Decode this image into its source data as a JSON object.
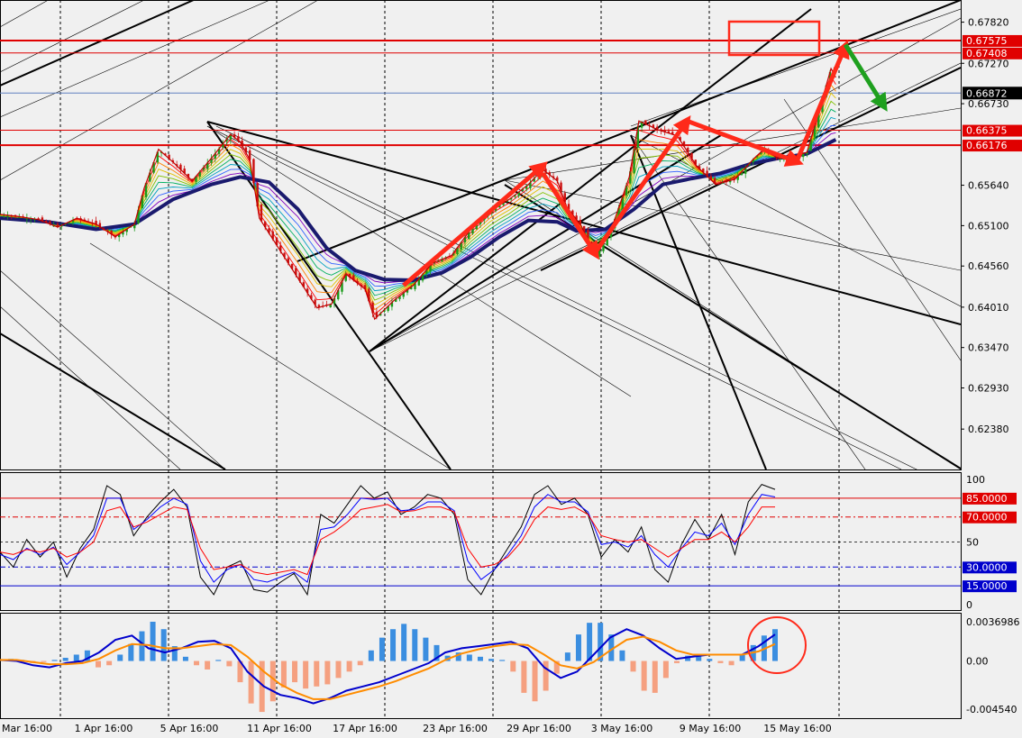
{
  "chart_data": [
    {
      "type": "line",
      "subtype": "candlestick",
      "pane": "price",
      "ylim": [
        0.6184,
        0.6802
      ],
      "y_ticks": [
        "0.67820",
        "0.67270",
        "0.66730",
        "0.65640",
        "0.65100",
        "0.64560",
        "0.64010",
        "0.63470",
        "0.62930",
        "0.62380"
      ],
      "horizontal_levels": [
        {
          "label": "0.67575",
          "value": 0.67575,
          "color": "#e00000"
        },
        {
          "label": "0.67408",
          "value": 0.67408,
          "color": "#e00000"
        },
        {
          "label": "0.66375",
          "value": 0.66375,
          "color": "#e00000"
        },
        {
          "label": "0.66176",
          "value": 0.66176,
          "color": "#e00000"
        }
      ],
      "current_price": {
        "label": "0.66872",
        "value": 0.66872
      },
      "x_ticks": [
        "Mar 16:00",
        "1 Apr 16:00",
        "5 Apr 16:00",
        "11 Apr 16:00",
        "17 Apr 16:00",
        "23 Apr 16:00",
        "29 Apr 16:00",
        "3 May 16:00",
        "9 May 16:00",
        "15 May 16:00"
      ],
      "close_path": [
        [
          0,
          0.6525
        ],
        [
          4,
          0.6522
        ],
        [
          8,
          0.6518
        ],
        [
          12,
          0.6508
        ],
        [
          16,
          0.652
        ],
        [
          20,
          0.6512
        ],
        [
          24,
          0.6495
        ],
        [
          28,
          0.6512
        ],
        [
          30,
          0.656
        ],
        [
          33,
          0.6612
        ],
        [
          36,
          0.6595
        ],
        [
          40,
          0.657
        ],
        [
          44,
          0.66
        ],
        [
          48,
          0.6632
        ],
        [
          50,
          0.6622
        ],
        [
          52,
          0.6598
        ],
        [
          54,
          0.652
        ],
        [
          58,
          0.648
        ],
        [
          62,
          0.644
        ],
        [
          66,
          0.64
        ],
        [
          69,
          0.6405
        ],
        [
          72,
          0.6445
        ],
        [
          76,
          0.6425
        ],
        [
          78,
          0.6385
        ],
        [
          82,
          0.641
        ],
        [
          86,
          0.643
        ],
        [
          90,
          0.646
        ],
        [
          94,
          0.647
        ],
        [
          98,
          0.6505
        ],
        [
          102,
          0.653
        ],
        [
          106,
          0.6545
        ],
        [
          110,
          0.6565
        ],
        [
          113,
          0.6585
        ],
        [
          116,
          0.657
        ],
        [
          118,
          0.6535
        ],
        [
          121,
          0.651
        ],
        [
          124,
          0.647
        ],
        [
          127,
          0.65
        ],
        [
          131,
          0.6575
        ],
        [
          133,
          0.665
        ],
        [
          137,
          0.6638
        ],
        [
          141,
          0.663
        ],
        [
          145,
          0.659
        ],
        [
          149,
          0.6565
        ],
        [
          153,
          0.6572
        ],
        [
          157,
          0.66
        ],
        [
          159,
          0.6612
        ],
        [
          162,
          0.66
        ],
        [
          165,
          0.6602
        ],
        [
          168,
          0.6608
        ],
        [
          171,
          0.6675
        ],
        [
          173,
          0.672
        ],
        [
          174,
          0.6708
        ]
      ],
      "ma_path": [
        [
          0,
          0.652
        ],
        [
          10,
          0.6515
        ],
        [
          20,
          0.6505
        ],
        [
          28,
          0.6512
        ],
        [
          36,
          0.6545
        ],
        [
          44,
          0.6565
        ],
        [
          50,
          0.6575
        ],
        [
          56,
          0.6568
        ],
        [
          62,
          0.6532
        ],
        [
          68,
          0.648
        ],
        [
          74,
          0.645
        ],
        [
          80,
          0.6438
        ],
        [
          86,
          0.6437
        ],
        [
          92,
          0.6447
        ],
        [
          98,
          0.6468
        ],
        [
          104,
          0.6495
        ],
        [
          110,
          0.6517
        ],
        [
          116,
          0.6515
        ],
        [
          120,
          0.6503
        ],
        [
          126,
          0.6505
        ],
        [
          132,
          0.6532
        ],
        [
          138,
          0.6565
        ],
        [
          144,
          0.6573
        ],
        [
          150,
          0.658
        ],
        [
          156,
          0.6592
        ],
        [
          162,
          0.66
        ],
        [
          168,
          0.6606
        ],
        [
          174,
          0.6625
        ]
      ],
      "trend_arrows": [
        {
          "color": "#ff2a1a",
          "from": [
            84,
            0.643
          ],
          "to": [
            113,
            0.659
          ]
        },
        {
          "color": "#ff2a1a",
          "from": [
            113,
            0.658
          ],
          "to": [
            124,
            0.6472
          ]
        },
        {
          "color": "#ff2a1a",
          "from": [
            124,
            0.6475
          ],
          "to": [
            143,
            0.665
          ]
        },
        {
          "color": "#ff2a1a",
          "from": [
            143,
            0.665
          ],
          "to": [
            166,
            0.6595
          ]
        },
        {
          "color": "#ff2a1a",
          "from": [
            166,
            0.6598
          ],
          "to": [
            176,
            0.675
          ]
        },
        {
          "color": "#1fa01f",
          "from": [
            176,
            0.6752
          ],
          "to": [
            184,
            0.667
          ]
        }
      ]
    },
    {
      "type": "line",
      "pane": "stochastic",
      "ylim": [
        0,
        100
      ],
      "y_ticks": [
        "100",
        "50",
        "0"
      ],
      "levels": [
        {
          "label": "85.0000",
          "value": 85,
          "color": "#e00000"
        },
        {
          "label": "70.0000",
          "value": 70,
          "color": "#e00000"
        },
        {
          "label": "30.0000",
          "value": 30,
          "color": "#0000cc"
        },
        {
          "label": "15.0000",
          "value": 15,
          "color": "#0000cc"
        }
      ],
      "series": [
        {
          "color": "#000000",
          "values": [
            42,
            30,
            52,
            38,
            50,
            22,
            45,
            60,
            95,
            88,
            55,
            70,
            82,
            92,
            78,
            22,
            8,
            30,
            35,
            12,
            10,
            18,
            25,
            8,
            72,
            65,
            80,
            95,
            85,
            90,
            72,
            78,
            88,
            85,
            72,
            20,
            8,
            28,
            45,
            62,
            88,
            95,
            80,
            85,
            72,
            38,
            52,
            42,
            62,
            28,
            18,
            48,
            68,
            52,
            72,
            40,
            82,
            96,
            92
          ]
        },
        {
          "color": "#0000ff",
          "values": [
            40,
            36,
            45,
            40,
            46,
            32,
            42,
            55,
            85,
            85,
            60,
            68,
            78,
            85,
            80,
            35,
            18,
            28,
            32,
            20,
            18,
            22,
            26,
            18,
            60,
            62,
            72,
            85,
            84,
            85,
            75,
            76,
            82,
            82,
            75,
            35,
            20,
            28,
            40,
            55,
            78,
            88,
            82,
            82,
            74,
            48,
            50,
            46,
            55,
            40,
            30,
            45,
            58,
            55,
            65,
            48,
            72,
            88,
            86
          ]
        },
        {
          "color": "#ff0000",
          "values": [
            42,
            40,
            44,
            42,
            45,
            38,
            42,
            50,
            75,
            78,
            62,
            66,
            72,
            78,
            76,
            45,
            28,
            30,
            32,
            26,
            24,
            26,
            28,
            24,
            52,
            58,
            66,
            76,
            78,
            80,
            74,
            75,
            78,
            78,
            74,
            45,
            30,
            32,
            38,
            50,
            68,
            78,
            76,
            78,
            72,
            55,
            52,
            50,
            52,
            45,
            38,
            45,
            52,
            52,
            58,
            50,
            62,
            78,
            78
          ]
        }
      ]
    },
    {
      "type": "bar",
      "pane": "macd",
      "ylim": [
        -0.00454,
        0.003698
      ],
      "y_ticks": [
        "0.0036986",
        "0.00",
        "-0.004540"
      ],
      "histogram_colors": {
        "positive": "#3b8ee0",
        "negative": "#f5a080"
      },
      "histogram_values": [
        0.0001,
        0.0002,
        0.0001,
        -0.0002,
        -0.0001,
        0.0001,
        0.0003,
        0.0006,
        0.001,
        -0.0006,
        -0.0004,
        0.0006,
        0.0016,
        0.0028,
        0.0037,
        0.003,
        0.0014,
        0.0004,
        -0.0004,
        -0.0008,
        0.0001,
        -0.0005,
        -0.002,
        -0.004,
        -0.0048,
        -0.0038,
        -0.0025,
        -0.002,
        -0.0026,
        -0.0024,
        -0.0022,
        -0.0016,
        -0.001,
        -0.0004,
        0.001,
        0.0022,
        0.003,
        0.0035,
        0.003,
        0.0022,
        0.0015,
        0.0005,
        0.0008,
        0.0006,
        0.0004,
        0.0002,
        0.0001,
        -0.001,
        -0.003,
        -0.0038,
        -0.0028,
        -0.0012,
        0.0008,
        0.0025,
        0.0036,
        0.0036,
        0.0025,
        0.001,
        -0.001,
        -0.0028,
        -0.003,
        -0.0016,
        -0.0002,
        0.0005,
        0.0006,
        0.0002,
        -0.0002,
        -0.0004,
        0.0006,
        0.0015,
        0.0024,
        0.003
      ],
      "series": [
        {
          "name": "MACD",
          "color": "#0000cc",
          "values": [
            0.0001,
            0.0,
            -0.0004,
            -0.0006,
            -0.0002,
            0.0,
            0.0008,
            0.002,
            0.0024,
            0.0012,
            0.0008,
            0.0012,
            0.0018,
            0.0019,
            0.0012,
            -0.001,
            -0.0024,
            -0.0032,
            -0.0035,
            -0.004,
            -0.0035,
            -0.0028,
            -0.0024,
            -0.002,
            -0.0014,
            -0.0008,
            -0.0002,
            0.0008,
            0.0012,
            0.0014,
            0.0016,
            0.0018,
            0.0012,
            -0.0006,
            -0.0016,
            -0.001,
            0.0006,
            0.0022,
            0.003,
            0.0024,
            0.0012,
            0.0002,
            0.0004,
            0.0006,
            0.0006,
            0.0006,
            0.0014,
            0.0025
          ]
        },
        {
          "name": "Signal",
          "color": "#ff8c00",
          "values": [
            0.0001,
            0.0001,
            -0.0001,
            -0.0003,
            -0.0003,
            -0.0002,
            0.0002,
            0.001,
            0.0016,
            0.0015,
            0.0012,
            0.0012,
            0.0014,
            0.0016,
            0.0015,
            0.0004,
            -0.001,
            -0.0022,
            -0.003,
            -0.0036,
            -0.0036,
            -0.0032,
            -0.0028,
            -0.0024,
            -0.0019,
            -0.0013,
            -0.0007,
            0.0001,
            0.0007,
            0.0011,
            0.0014,
            0.0016,
            0.0015,
            0.0006,
            -0.0004,
            -0.0007,
            -0.0001,
            0.001,
            0.002,
            0.0023,
            0.0018,
            0.001,
            0.0006,
            0.0006,
            0.0006,
            0.0006,
            0.0009,
            0.0016
          ]
        }
      ]
    }
  ],
  "colors": {
    "background": "#f0f0f0",
    "grid": "#000000",
    "level_red": "#e00000",
    "ribbon": [
      "#ff0000",
      "#ff8000",
      "#e0c000",
      "#80c000",
      "#00b060",
      "#00a0c0",
      "#3060ff",
      "#8000c0"
    ],
    "ma": "#1a1a6e"
  }
}
